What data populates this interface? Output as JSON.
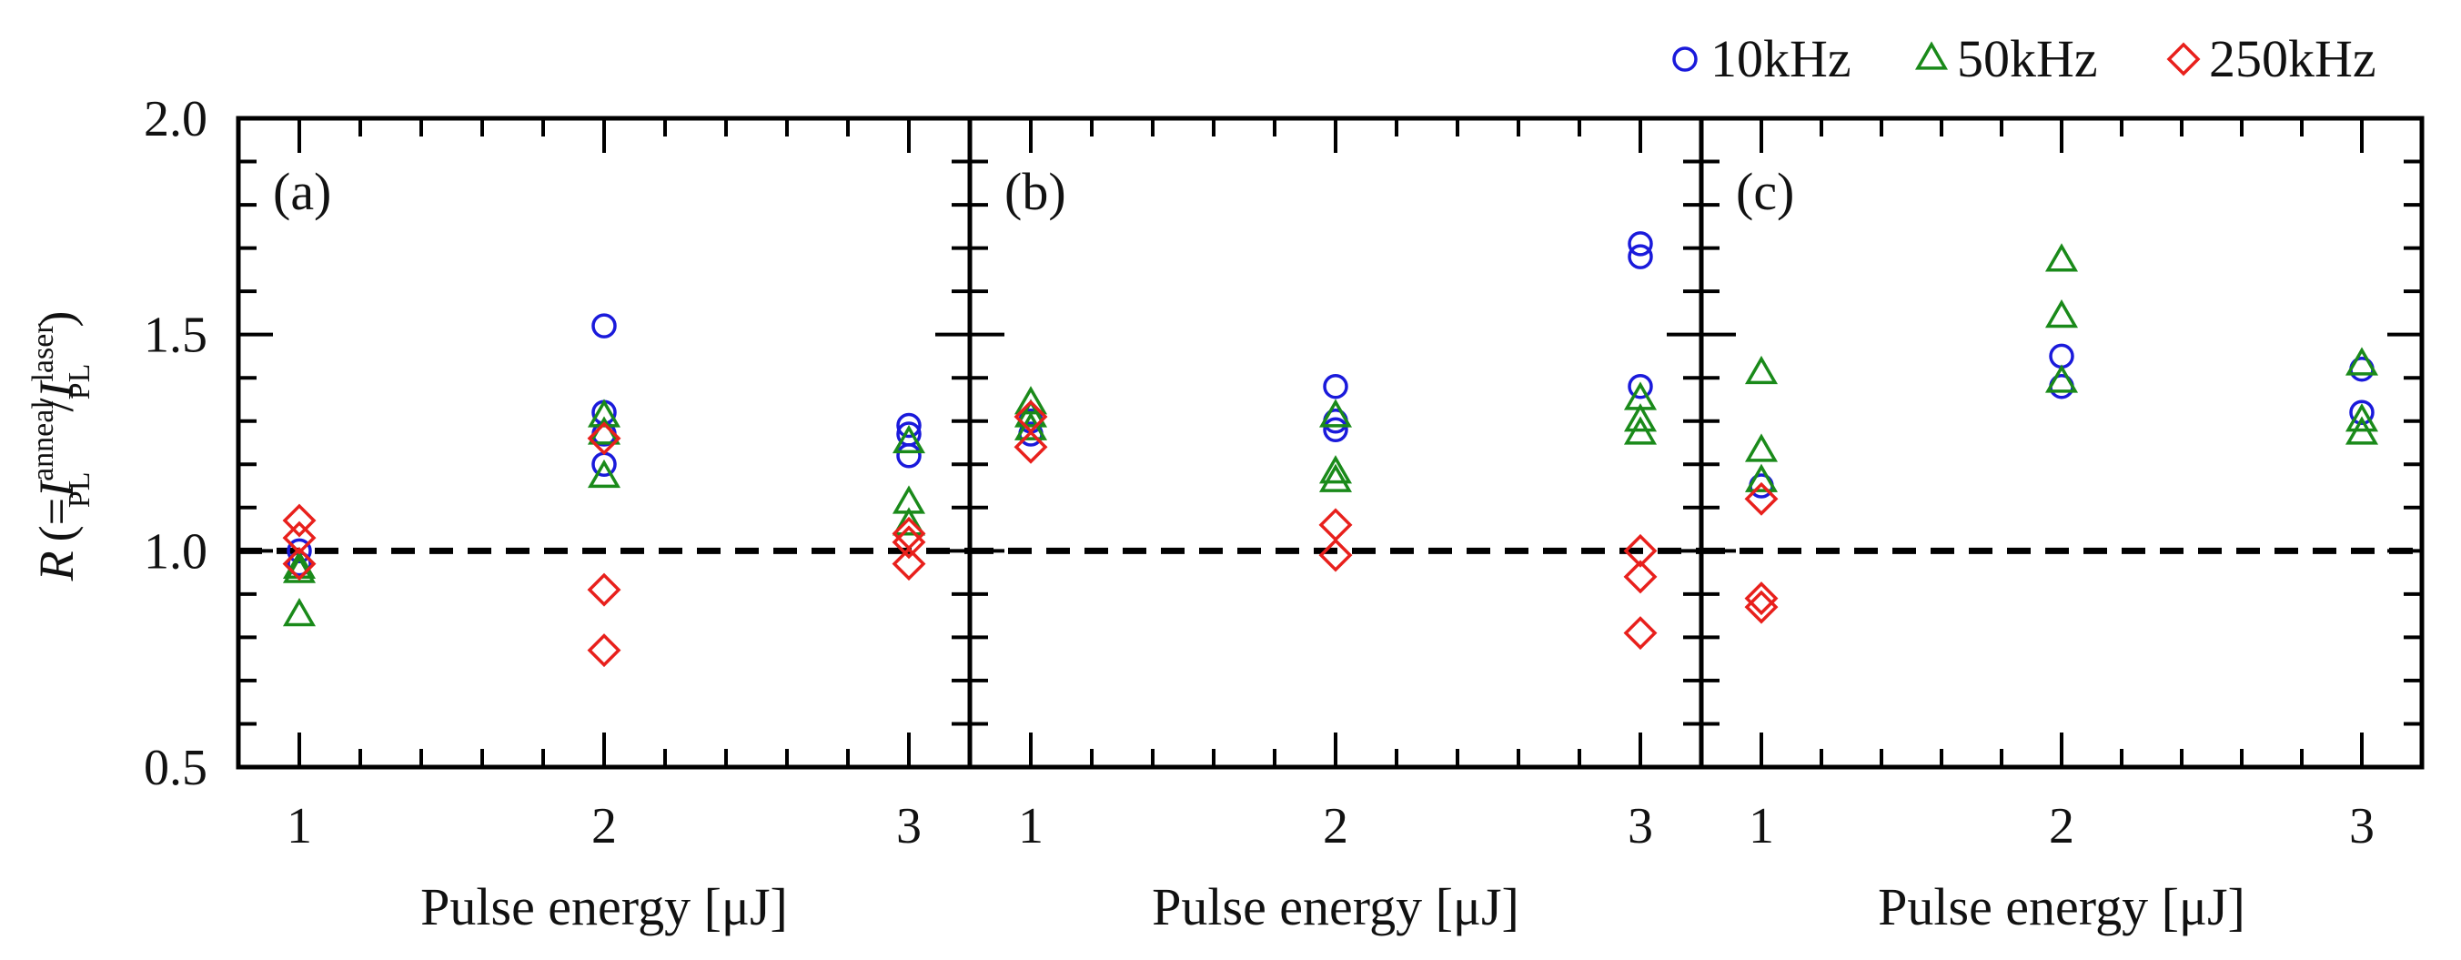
{
  "chart_data": {
    "type": "scatter",
    "ylabel_symbol": "R",
    "ylabel_prefix": "(=",
    "ylabel_I1": "I",
    "ylabel_sup1": "anneal",
    "ylabel_sub1": "PL",
    "ylabel_slash": "/",
    "ylabel_I2": "I",
    "ylabel_sup2": "laser",
    "ylabel_sub2": "PL",
    "ylabel_suffix": ")",
    "ylim": [
      0.5,
      2.0
    ],
    "yticks": [
      "0.5",
      "1.0",
      "1.5",
      "2.0"
    ],
    "xlim": [
      0.8,
      3.2
    ],
    "xticks": [
      "1",
      "2",
      "3"
    ],
    "reference_line": 1.0,
    "legend": [
      {
        "name": "10kHz",
        "marker": "circle",
        "color": "#1a1adb"
      },
      {
        "name": "50kHz",
        "marker": "triangle",
        "color": "#1a8a1a"
      },
      {
        "name": "250kHz",
        "marker": "diamond",
        "color": "#e8201c"
      }
    ],
    "panels": [
      {
        "label": "(a)",
        "xlabel": "Pulse energy [μJ]",
        "series": [
          {
            "name": "10kHz",
            "points": [
              [
                1,
                0.97
              ],
              [
                1,
                1.0
              ],
              [
                2,
                1.52
              ],
              [
                2,
                1.32
              ],
              [
                2,
                1.27
              ],
              [
                2,
                1.2
              ],
              [
                3,
                1.29
              ],
              [
                3,
                1.27
              ],
              [
                3,
                1.22
              ]
            ]
          },
          {
            "name": "50kHz",
            "points": [
              [
                1,
                0.96
              ],
              [
                1,
                0.95
              ],
              [
                1,
                0.85
              ],
              [
                2,
                1.31
              ],
              [
                2,
                1.27
              ],
              [
                2,
                1.17
              ],
              [
                3,
                1.25
              ],
              [
                3,
                1.11
              ],
              [
                3,
                1.06
              ]
            ]
          },
          {
            "name": "250kHz",
            "points": [
              [
                1,
                1.07
              ],
              [
                1,
                1.03
              ],
              [
                1,
                0.97
              ],
              [
                2,
                1.26
              ],
              [
                2,
                0.91
              ],
              [
                2,
                0.77
              ],
              [
                3,
                1.04
              ],
              [
                3,
                1.02
              ],
              [
                3,
                0.97
              ]
            ]
          }
        ]
      },
      {
        "label": "(b)",
        "xlabel": "Pulse energy [μJ]",
        "series": [
          {
            "name": "10kHz",
            "points": [
              [
                1,
                1.3
              ],
              [
                1,
                1.27
              ],
              [
                2,
                1.38
              ],
              [
                2,
                1.3
              ],
              [
                2,
                1.28
              ],
              [
                3,
                1.71
              ],
              [
                3,
                1.68
              ],
              [
                3,
                1.38
              ]
            ]
          },
          {
            "name": "50kHz",
            "points": [
              [
                1,
                1.34
              ],
              [
                1,
                1.31
              ],
              [
                1,
                1.28
              ],
              [
                2,
                1.31
              ],
              [
                2,
                1.18
              ],
              [
                2,
                1.16
              ],
              [
                3,
                1.35
              ],
              [
                3,
                1.3
              ],
              [
                3,
                1.27
              ]
            ]
          },
          {
            "name": "250kHz",
            "points": [
              [
                1,
                1.31
              ],
              [
                1,
                1.24
              ],
              [
                2,
                1.06
              ],
              [
                2,
                0.99
              ],
              [
                3,
                1.0
              ],
              [
                3,
                0.94
              ],
              [
                3,
                0.81
              ]
            ]
          }
        ]
      },
      {
        "label": "(c)",
        "xlabel": "Pulse energy [μJ]",
        "series": [
          {
            "name": "10kHz",
            "points": [
              [
                1,
                1.15
              ],
              [
                2,
                1.45
              ],
              [
                2,
                1.38
              ],
              [
                3,
                1.42
              ],
              [
                3,
                1.32
              ]
            ]
          },
          {
            "name": "50kHz",
            "points": [
              [
                1,
                1.41
              ],
              [
                1,
                1.23
              ],
              [
                1,
                1.16
              ],
              [
                2,
                1.67
              ],
              [
                2,
                1.54
              ],
              [
                2,
                1.39
              ],
              [
                3,
                1.43
              ],
              [
                3,
                1.3
              ],
              [
                3,
                1.27
              ]
            ]
          },
          {
            "name": "250kHz",
            "points": [
              [
                1,
                1.12
              ],
              [
                1,
                0.89
              ],
              [
                1,
                0.87
              ]
            ]
          }
        ]
      }
    ]
  }
}
